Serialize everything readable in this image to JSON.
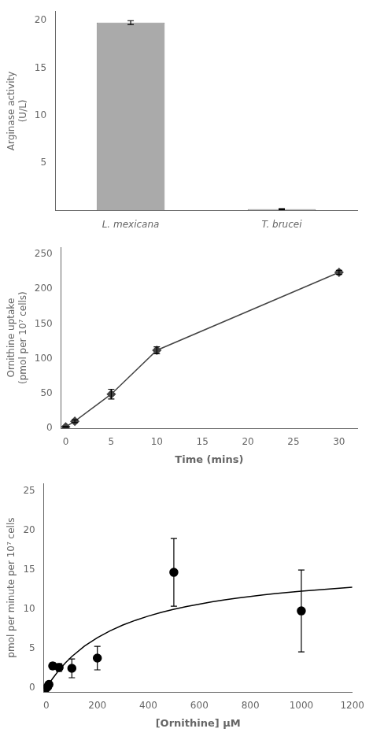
{
  "chart_data": [
    {
      "type": "bar",
      "categories": [
        "L. mexicana",
        "T. brucei"
      ],
      "values": [
        19.8,
        0.15
      ],
      "errors": [
        0.2,
        0.05
      ],
      "color": "#aaaaaa",
      "ylabel": "Arginase activity\n(U/L)",
      "ylim": [
        0,
        21
      ],
      "yticks": [
        5,
        10,
        15,
        20
      ],
      "grid": false
    },
    {
      "type": "line",
      "x": [
        0,
        1,
        5,
        10,
        30
      ],
      "values": [
        2,
        10,
        49,
        112,
        224
      ],
      "errors": [
        0.5,
        2,
        7,
        5,
        3
      ],
      "color": "#444444",
      "marker": "diamond",
      "line_style": "solid",
      "ylabel": "Ornithine uptake\n(pmol per 10⁷ cells)",
      "xlabel": "Time (mins)",
      "xlim": [
        -0.5,
        32
      ],
      "ylim": [
        0,
        260
      ],
      "xticks": [
        0,
        5,
        10,
        15,
        20,
        25,
        30
      ],
      "yticks": [
        0,
        50,
        100,
        150,
        200,
        250
      ],
      "grid": false
    },
    {
      "type": "scatter",
      "series": [
        {
          "type": "line",
          "color": "#000000",
          "line_style": "solid",
          "x": [
            0,
            10,
            25,
            50,
            75,
            100,
            150,
            200,
            250,
            300,
            350,
            400,
            450,
            500,
            550,
            600,
            650,
            700,
            750,
            800,
            850,
            900,
            950,
            1000,
            1050,
            1100,
            1150,
            1200
          ],
          "values": [
            0,
            0.516129,
            1.230769,
            2.285714,
            3.2,
            4,
            5.333333,
            6.4,
            7.272727,
            8,
            8.615385,
            9.142857,
            9.6,
            10,
            10.352941,
            10.666667,
            10.947368,
            11.2,
            11.428571,
            11.636364,
            11.826087,
            12,
            12.16,
            12.307692,
            12.444444,
            12.571429,
            12.689655,
            12.8
          ]
        },
        {
          "type": "scatter",
          "color": "#000000",
          "marker": "circle",
          "x": [
            0,
            5,
            10,
            25,
            50,
            100,
            200,
            500,
            1000
          ],
          "values": [
            0.0,
            0.15,
            0.45,
            2.8,
            2.6,
            2.5,
            3.8,
            14.7,
            9.8
          ],
          "errors": [
            0.0,
            0.05,
            0.15,
            0.4,
            0.5,
            1.2,
            1.5,
            4.3,
            5.2
          ]
        }
      ],
      "ylabel": "pmol per minute per 10⁷ cells",
      "xlabel": "[Ornithine] μM",
      "xlim": [
        -10,
        1200
      ],
      "ylim": [
        -0.5,
        26
      ],
      "xticks": [
        0,
        200,
        400,
        600,
        800,
        1000,
        1200
      ],
      "yticks": [
        0,
        5,
        10,
        15,
        20,
        25
      ],
      "grid": false
    }
  ]
}
